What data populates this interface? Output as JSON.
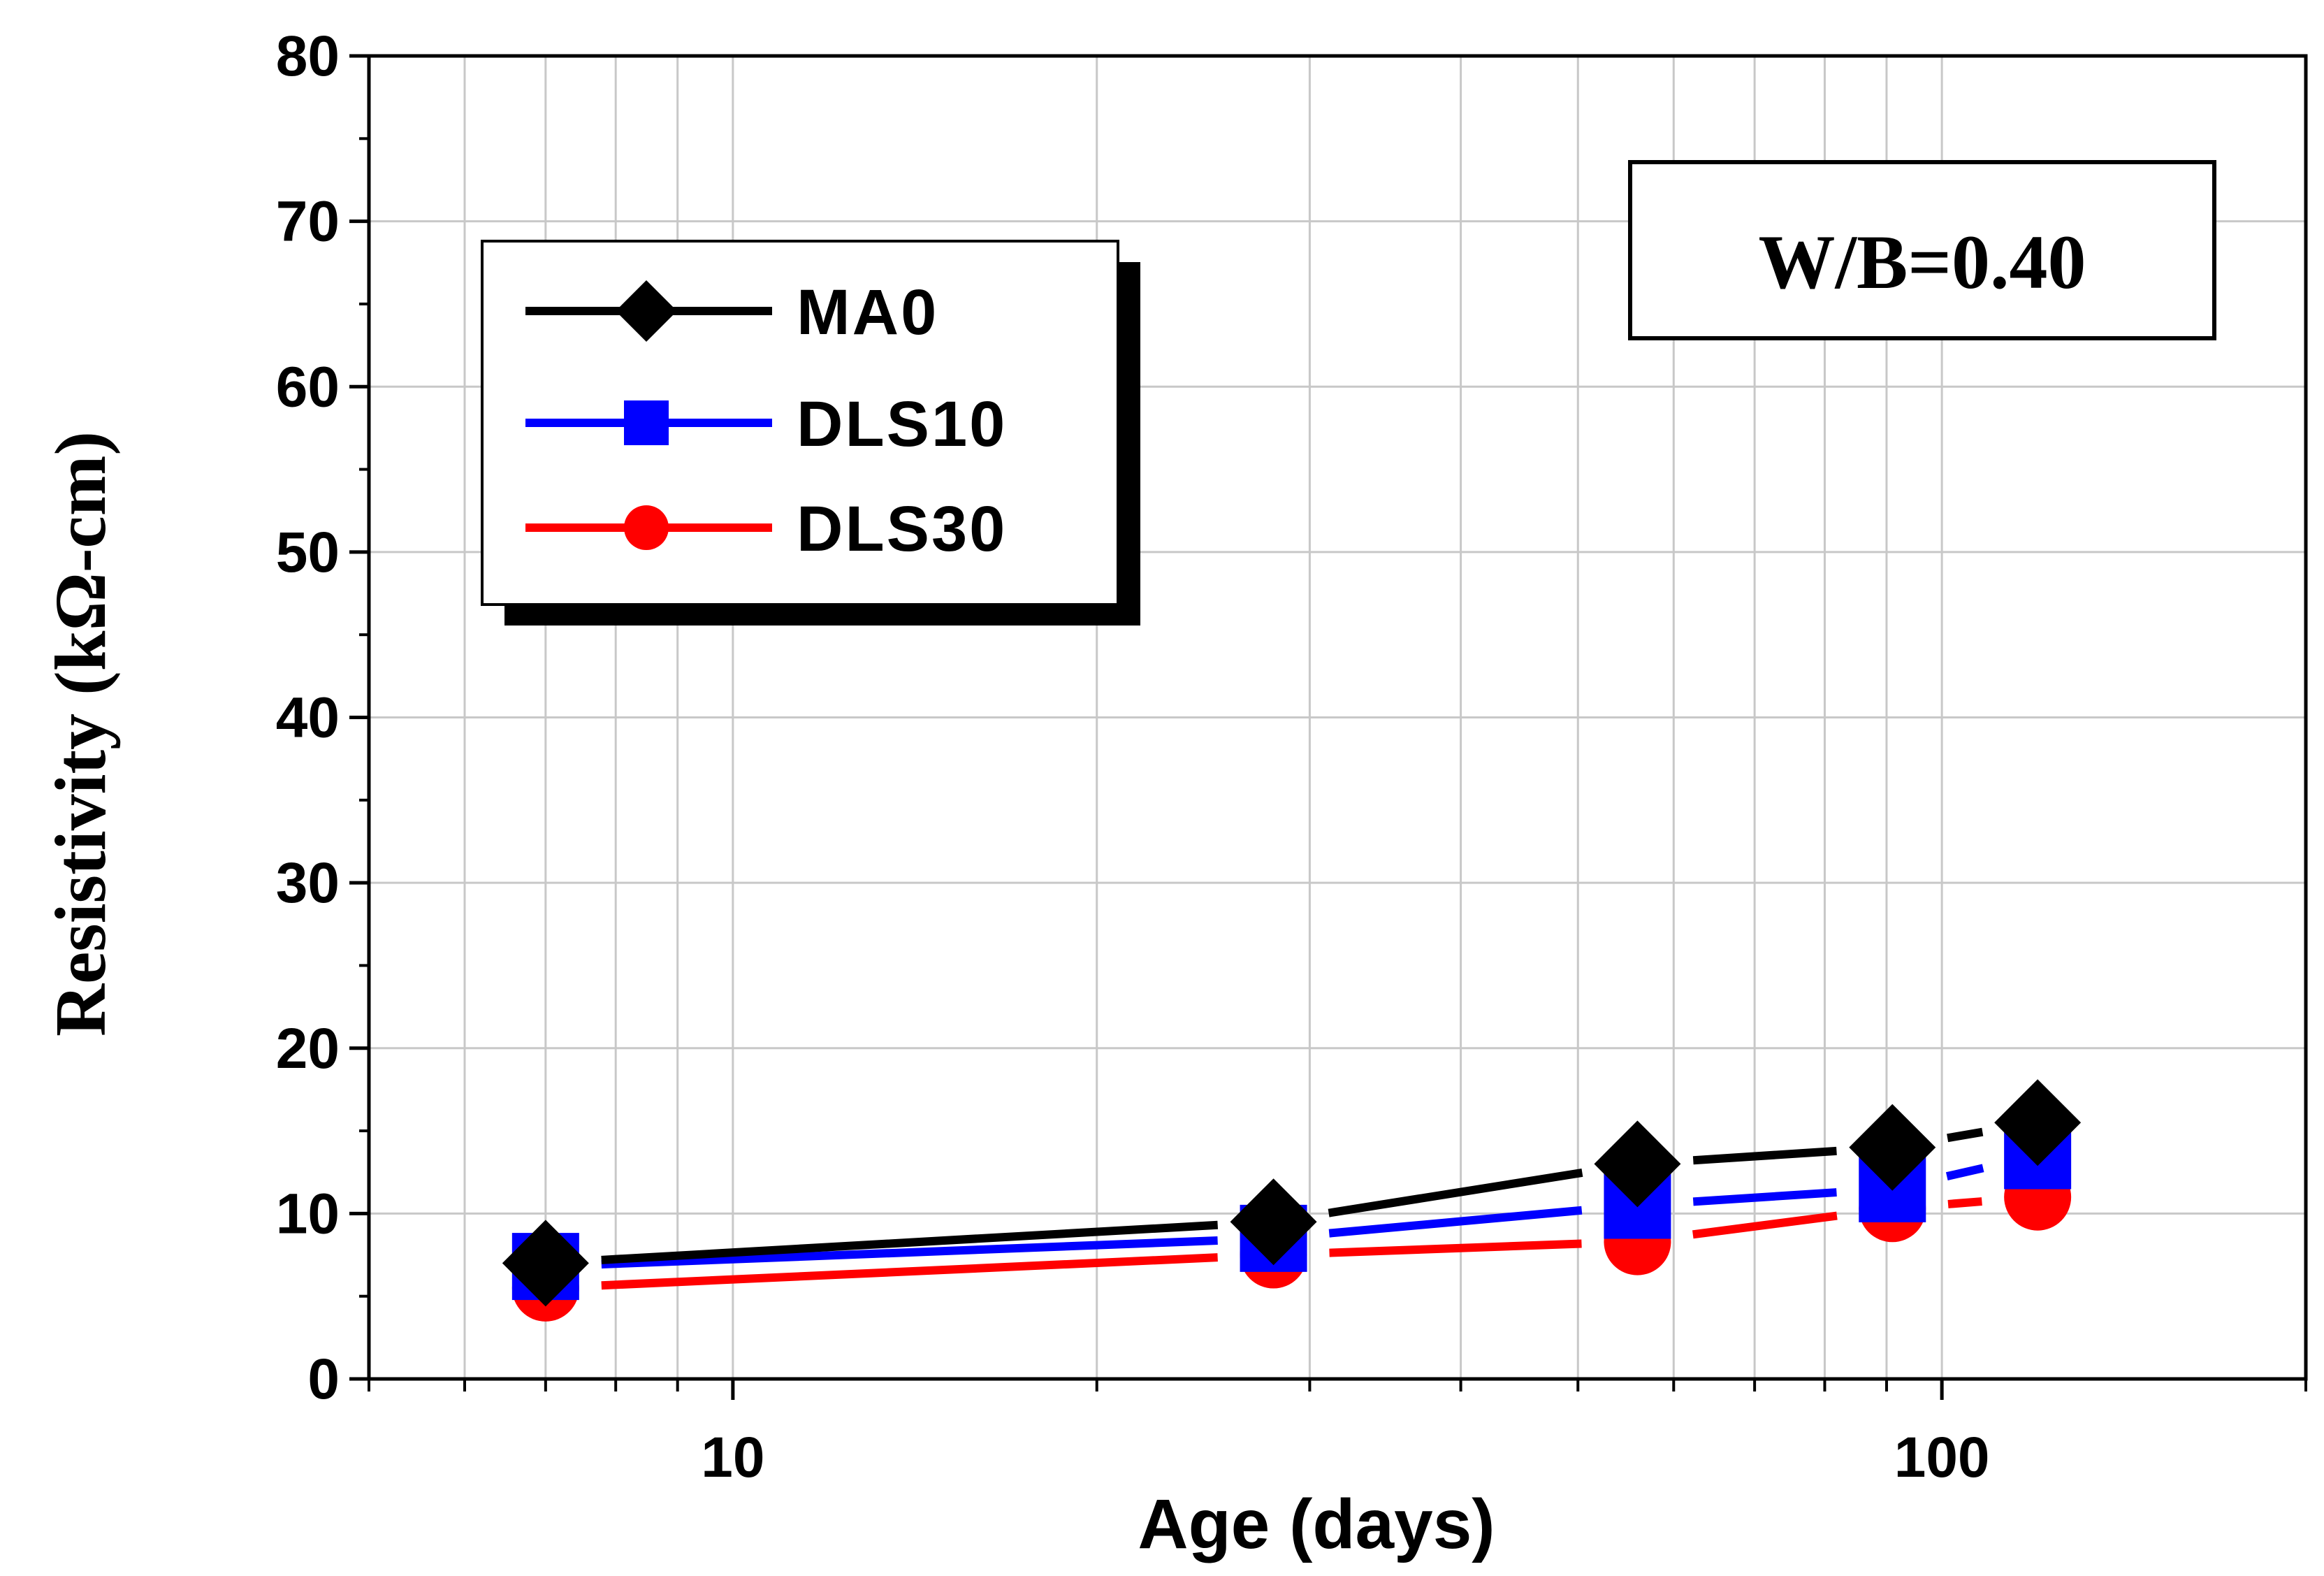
{
  "chart_data": {
    "type": "line",
    "xscale": "log",
    "xlabel": "Age (days)",
    "ylabel": "Resistivity (kΩ-cm)",
    "xlim": [
      5,
      200
    ],
    "ylim": [
      0,
      80
    ],
    "yticks": [
      0,
      10,
      20,
      30,
      40,
      50,
      60,
      70,
      80
    ],
    "xticks_labeled": [
      10,
      100
    ],
    "x": [
      7,
      28,
      56,
      91,
      120
    ],
    "grid": true,
    "legend_position": "top-left",
    "annotation": "W/B=0.40",
    "series": [
      {
        "name": "MA0",
        "color": "#000000",
        "marker": "diamond",
        "values": [
          7.0,
          9.5,
          13.0,
          14.0,
          15.5
        ]
      },
      {
        "name": "DLS10",
        "color": "#0000ff",
        "marker": "square",
        "values": [
          6.8,
          8.5,
          10.5,
          11.5,
          13.5
        ]
      },
      {
        "name": "DLS30",
        "color": "#ff0000",
        "marker": "circle",
        "values": [
          5.5,
          7.5,
          8.3,
          10.3,
          11.0
        ]
      }
    ]
  }
}
